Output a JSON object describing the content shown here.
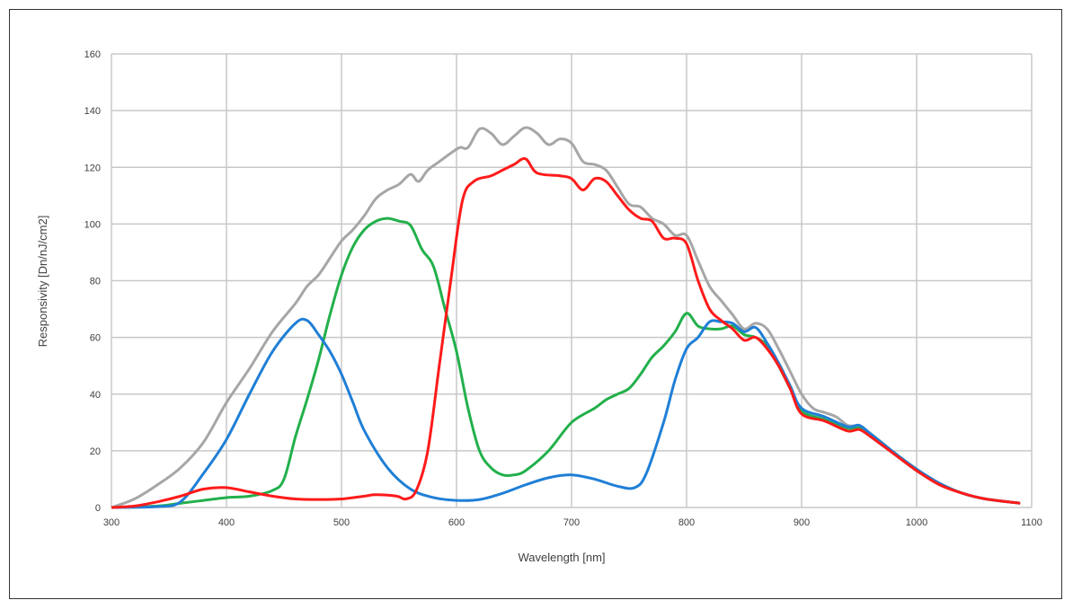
{
  "chart_data": {
    "type": "line",
    "title": "",
    "xlabel": "Wavelength [nm]",
    "ylabel": "Responsivity [Dn/nJ/cm2]",
    "xlim": [
      300,
      1100
    ],
    "ylim": [
      0,
      160
    ],
    "xticks": [
      300,
      400,
      500,
      600,
      700,
      800,
      900,
      1000,
      1100
    ],
    "yticks": [
      0,
      20,
      40,
      60,
      80,
      100,
      120,
      140,
      160
    ],
    "grid": true,
    "legend": "none",
    "series": [
      {
        "id": "gray",
        "color": "#a6a6a6",
        "points": [
          [
            300,
            0
          ],
          [
            320,
            3
          ],
          [
            340,
            8
          ],
          [
            360,
            14
          ],
          [
            380,
            23
          ],
          [
            400,
            37
          ],
          [
            420,
            49
          ],
          [
            440,
            62
          ],
          [
            460,
            72
          ],
          [
            470,
            78
          ],
          [
            480,
            82
          ],
          [
            490,
            88
          ],
          [
            500,
            94
          ],
          [
            510,
            98
          ],
          [
            520,
            103
          ],
          [
            530,
            109
          ],
          [
            540,
            112
          ],
          [
            550,
            114
          ],
          [
            560,
            117.5
          ],
          [
            567,
            115
          ],
          [
            575,
            119
          ],
          [
            585,
            122
          ],
          [
            595,
            125
          ],
          [
            603,
            127
          ],
          [
            610,
            127
          ],
          [
            620,
            133.5
          ],
          [
            630,
            132
          ],
          [
            640,
            128
          ],
          [
            650,
            131
          ],
          [
            660,
            134
          ],
          [
            670,
            132
          ],
          [
            680,
            128
          ],
          [
            690,
            130
          ],
          [
            700,
            128.5
          ],
          [
            710,
            122
          ],
          [
            720,
            121
          ],
          [
            730,
            119
          ],
          [
            740,
            113
          ],
          [
            750,
            107
          ],
          [
            760,
            106
          ],
          [
            770,
            102
          ],
          [
            780,
            100
          ],
          [
            790,
            96
          ],
          [
            800,
            96
          ],
          [
            810,
            87
          ],
          [
            820,
            78
          ],
          [
            830,
            73
          ],
          [
            840,
            68
          ],
          [
            850,
            63
          ],
          [
            860,
            65
          ],
          [
            870,
            63
          ],
          [
            880,
            56
          ],
          [
            890,
            48
          ],
          [
            900,
            40
          ],
          [
            910,
            35
          ],
          [
            920,
            33.5
          ],
          [
            930,
            32
          ],
          [
            940,
            29
          ],
          [
            950,
            28.5
          ],
          [
            960,
            25
          ],
          [
            980,
            19
          ],
          [
            1000,
            13
          ],
          [
            1020,
            8.5
          ],
          [
            1040,
            5
          ],
          [
            1060,
            3
          ],
          [
            1090,
            1.5
          ]
        ]
      },
      {
        "id": "green",
        "color": "#22b04b",
        "points": [
          [
            300,
            0
          ],
          [
            340,
            0.5
          ],
          [
            360,
            1.5
          ],
          [
            380,
            2.5
          ],
          [
            400,
            3.5
          ],
          [
            420,
            4
          ],
          [
            440,
            6
          ],
          [
            450,
            10
          ],
          [
            460,
            25
          ],
          [
            470,
            38
          ],
          [
            480,
            52
          ],
          [
            490,
            68
          ],
          [
            500,
            82
          ],
          [
            510,
            92
          ],
          [
            520,
            98
          ],
          [
            530,
            101
          ],
          [
            540,
            102
          ],
          [
            550,
            101
          ],
          [
            560,
            99.5
          ],
          [
            570,
            91
          ],
          [
            580,
            85
          ],
          [
            590,
            70
          ],
          [
            600,
            55
          ],
          [
            610,
            35
          ],
          [
            620,
            20
          ],
          [
            630,
            14
          ],
          [
            640,
            11.5
          ],
          [
            650,
            11.5
          ],
          [
            660,
            13
          ],
          [
            680,
            20
          ],
          [
            700,
            30
          ],
          [
            720,
            35
          ],
          [
            730,
            38
          ],
          [
            740,
            40
          ],
          [
            750,
            42
          ],
          [
            760,
            47
          ],
          [
            770,
            53
          ],
          [
            780,
            57
          ],
          [
            790,
            62
          ],
          [
            800,
            68.5
          ],
          [
            810,
            64
          ],
          [
            820,
            63
          ],
          [
            830,
            63
          ],
          [
            840,
            64
          ],
          [
            850,
            61
          ],
          [
            860,
            60
          ],
          [
            870,
            57
          ],
          [
            880,
            50
          ],
          [
            890,
            42
          ],
          [
            900,
            34
          ],
          [
            920,
            31
          ],
          [
            940,
            28
          ],
          [
            950,
            28
          ],
          [
            960,
            26
          ],
          [
            980,
            19.5
          ],
          [
            1000,
            13.5
          ],
          [
            1020,
            8.5
          ],
          [
            1040,
            5
          ],
          [
            1060,
            3
          ],
          [
            1090,
            1.5
          ]
        ]
      },
      {
        "id": "blue",
        "color": "#1f7fd6",
        "points": [
          [
            300,
            0
          ],
          [
            340,
            0.3
          ],
          [
            360,
            2
          ],
          [
            380,
            12
          ],
          [
            400,
            24
          ],
          [
            420,
            40
          ],
          [
            440,
            55
          ],
          [
            460,
            65
          ],
          [
            470,
            66
          ],
          [
            480,
            61
          ],
          [
            490,
            55
          ],
          [
            500,
            47
          ],
          [
            510,
            37
          ],
          [
            520,
            27
          ],
          [
            540,
            14
          ],
          [
            560,
            6.5
          ],
          [
            580,
            3.5
          ],
          [
            600,
            2.5
          ],
          [
            620,
            2.8
          ],
          [
            640,
            5
          ],
          [
            660,
            8
          ],
          [
            680,
            10.5
          ],
          [
            700,
            11.5
          ],
          [
            720,
            10
          ],
          [
            740,
            7.5
          ],
          [
            755,
            7
          ],
          [
            765,
            12
          ],
          [
            780,
            30
          ],
          [
            790,
            45
          ],
          [
            800,
            56
          ],
          [
            810,
            60
          ],
          [
            820,
            65.5
          ],
          [
            830,
            65.5
          ],
          [
            840,
            65
          ],
          [
            850,
            62
          ],
          [
            860,
            63.5
          ],
          [
            870,
            58
          ],
          [
            880,
            51
          ],
          [
            890,
            43
          ],
          [
            900,
            35
          ],
          [
            920,
            32
          ],
          [
            940,
            28.5
          ],
          [
            950,
            29
          ],
          [
            960,
            26
          ],
          [
            980,
            19.5
          ],
          [
            1000,
            13.5
          ],
          [
            1020,
            8.5
          ],
          [
            1040,
            5
          ],
          [
            1060,
            3
          ],
          [
            1090,
            1.5
          ]
        ]
      },
      {
        "id": "red",
        "color": "#ff1a1a",
        "points": [
          [
            300,
            0
          ],
          [
            320,
            0.5
          ],
          [
            340,
            2
          ],
          [
            360,
            4
          ],
          [
            380,
            6.5
          ],
          [
            400,
            7
          ],
          [
            420,
            5.5
          ],
          [
            440,
            4
          ],
          [
            460,
            3
          ],
          [
            480,
            2.8
          ],
          [
            500,
            3
          ],
          [
            520,
            4
          ],
          [
            530,
            4.5
          ],
          [
            548,
            4
          ],
          [
            556,
            3
          ],
          [
            565,
            6
          ],
          [
            575,
            20
          ],
          [
            585,
            50
          ],
          [
            595,
            80
          ],
          [
            605,
            108
          ],
          [
            615,
            115
          ],
          [
            630,
            117
          ],
          [
            640,
            119
          ],
          [
            650,
            121
          ],
          [
            660,
            123
          ],
          [
            670,
            118
          ],
          [
            690,
            117
          ],
          [
            700,
            116
          ],
          [
            710,
            112
          ],
          [
            720,
            116
          ],
          [
            730,
            115
          ],
          [
            740,
            110
          ],
          [
            750,
            105
          ],
          [
            760,
            102
          ],
          [
            770,
            101
          ],
          [
            780,
            95
          ],
          [
            790,
            95
          ],
          [
            800,
            93
          ],
          [
            810,
            80
          ],
          [
            820,
            70
          ],
          [
            830,
            66
          ],
          [
            840,
            63
          ],
          [
            850,
            59
          ],
          [
            860,
            60
          ],
          [
            870,
            56
          ],
          [
            880,
            50
          ],
          [
            890,
            42
          ],
          [
            900,
            33
          ],
          [
            920,
            30.5
          ],
          [
            940,
            27
          ],
          [
            950,
            27.5
          ],
          [
            960,
            25
          ],
          [
            980,
            19
          ],
          [
            1000,
            13
          ],
          [
            1020,
            8
          ],
          [
            1040,
            5
          ],
          [
            1060,
            3
          ],
          [
            1090,
            1.5
          ]
        ]
      }
    ]
  }
}
